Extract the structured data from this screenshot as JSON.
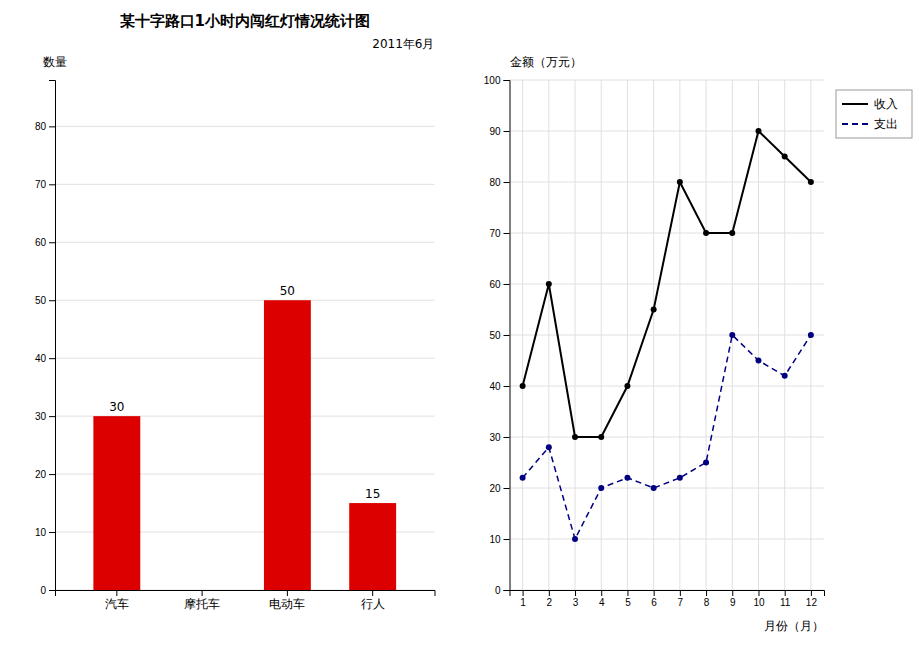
{
  "chart_data": [
    {
      "type": "bar",
      "title": "某十字路口1小时内闯红灯情况统计图",
      "subtitle": "2011年6月",
      "ylabel": "数量",
      "categories": [
        "汽车",
        "摩托车",
        "电动车",
        "行人"
      ],
      "values": [
        30,
        0,
        50,
        15
      ],
      "data_labels": true,
      "value_labels": [
        "30",
        null,
        "50",
        "15"
      ],
      "color": "#dd0000",
      "ylim": [
        0,
        88
      ],
      "yticks": [
        0,
        10,
        20,
        30,
        40,
        50,
        60,
        70,
        80
      ],
      "grid": true
    },
    {
      "type": "line",
      "xlabel": "月份（月）",
      "ylabel": "金额（万元）",
      "x": [
        1,
        2,
        3,
        4,
        5,
        6,
        7,
        8,
        9,
        10,
        11,
        12
      ],
      "series": [
        {
          "name": "收入",
          "color": "#000000",
          "line_style": "solid",
          "marker": "circle",
          "values": [
            40,
            60,
            30,
            30,
            40,
            55,
            80,
            70,
            70,
            90,
            85,
            80
          ]
        },
        {
          "name": "支出",
          "color": "#000080",
          "line_style": "dashed",
          "marker": "circle",
          "values": [
            22,
            28,
            10,
            20,
            22,
            20,
            22,
            25,
            50,
            45,
            42,
            50
          ]
        }
      ],
      "xlim": [
        0.5,
        12.5
      ],
      "xticks": [
        1,
        2,
        3,
        4,
        5,
        6,
        7,
        8,
        9,
        10,
        11,
        12
      ],
      "ylim": [
        0,
        100
      ],
      "yticks": [
        0,
        10,
        20,
        30,
        40,
        50,
        60,
        70,
        80,
        90,
        100
      ],
      "grid": true,
      "legend": "right"
    }
  ]
}
